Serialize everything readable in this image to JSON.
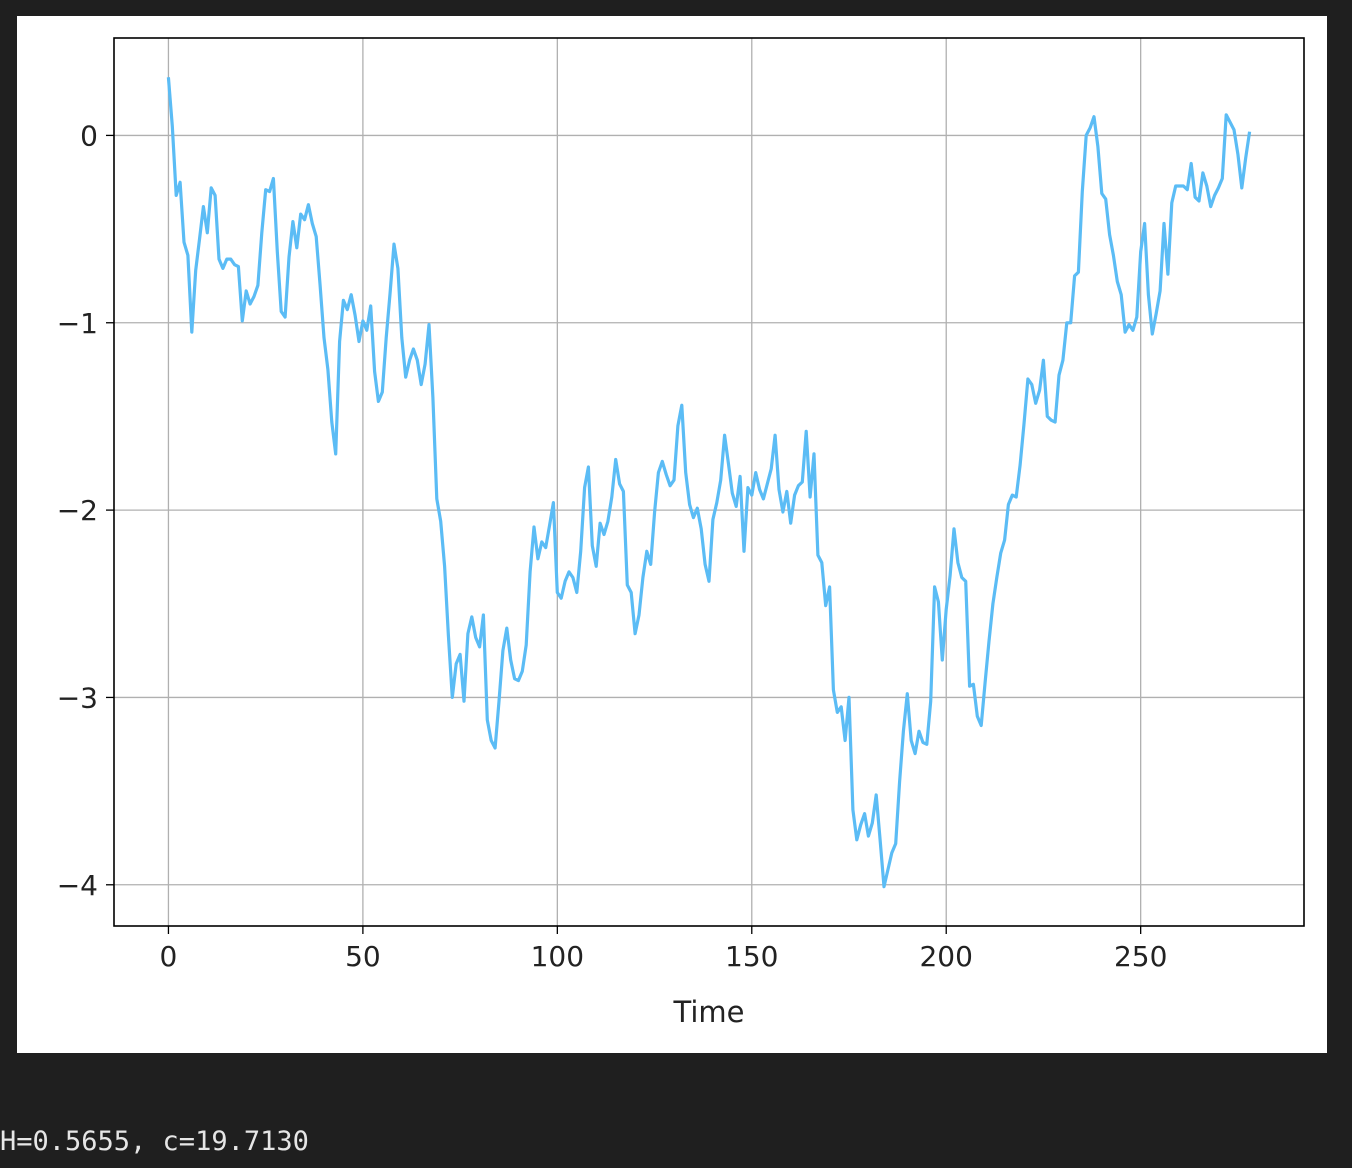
{
  "output": {
    "text": "H=0.5655, c=19.7130"
  },
  "chart_data": {
    "type": "line",
    "xlabel": "Time",
    "ylabel": "",
    "title": "",
    "xlim": [
      -14,
      292
    ],
    "ylim": [
      -4.22,
      0.52
    ],
    "xticks": [
      0,
      50,
      100,
      150,
      200,
      250
    ],
    "yticks": [
      0,
      -1,
      -2,
      -3,
      -4
    ],
    "ytick_labels": [
      "0",
      "−1",
      "−2",
      "−3",
      "−4"
    ],
    "grid": true,
    "colors": {
      "line": "#5bbcf5",
      "grid": "#b0b0b0",
      "axes": "#000000"
    },
    "series": [
      {
        "points": [
          [
            0,
            0.31
          ],
          [
            1,
            0.05
          ],
          [
            2,
            -0.32
          ],
          [
            3,
            -0.25
          ],
          [
            4,
            -0.57
          ],
          [
            5,
            -0.64
          ],
          [
            6,
            -1.05
          ],
          [
            7,
            -0.72
          ],
          [
            8,
            -0.55
          ],
          [
            9,
            -0.38
          ],
          [
            10,
            -0.52
          ],
          [
            11,
            -0.28
          ],
          [
            12,
            -0.32
          ],
          [
            13,
            -0.66
          ],
          [
            14,
            -0.71
          ],
          [
            15,
            -0.66
          ],
          [
            16,
            -0.66
          ],
          [
            17,
            -0.69
          ],
          [
            18,
            -0.7
          ],
          [
            19,
            -0.99
          ],
          [
            20,
            -0.83
          ],
          [
            21,
            -0.9
          ],
          [
            22,
            -0.86
          ],
          [
            23,
            -0.8
          ],
          [
            24,
            -0.52
          ],
          [
            25,
            -0.29
          ],
          [
            26,
            -0.3
          ],
          [
            27,
            -0.23
          ],
          [
            28,
            -0.62
          ],
          [
            29,
            -0.94
          ],
          [
            30,
            -0.97
          ],
          [
            31,
            -0.65
          ],
          [
            32,
            -0.46
          ],
          [
            33,
            -0.6
          ],
          [
            34,
            -0.42
          ],
          [
            35,
            -0.45
          ],
          [
            36,
            -0.37
          ],
          [
            37,
            -0.47
          ],
          [
            38,
            -0.54
          ],
          [
            39,
            -0.8
          ],
          [
            40,
            -1.08
          ],
          [
            41,
            -1.25
          ],
          [
            42,
            -1.53
          ],
          [
            43,
            -1.7
          ],
          [
            44,
            -1.1
          ],
          [
            45,
            -0.88
          ],
          [
            46,
            -0.93
          ],
          [
            47,
            -0.85
          ],
          [
            48,
            -0.96
          ],
          [
            49,
            -1.1
          ],
          [
            50,
            -0.99
          ],
          [
            51,
            -1.04
          ],
          [
            52,
            -0.91
          ],
          [
            53,
            -1.26
          ],
          [
            54,
            -1.42
          ],
          [
            55,
            -1.37
          ],
          [
            56,
            -1.08
          ],
          [
            57,
            -0.84
          ],
          [
            58,
            -0.58
          ],
          [
            59,
            -0.71
          ],
          [
            60,
            -1.08
          ],
          [
            61,
            -1.29
          ],
          [
            62,
            -1.2
          ],
          [
            63,
            -1.14
          ],
          [
            64,
            -1.2
          ],
          [
            65,
            -1.33
          ],
          [
            66,
            -1.22
          ],
          [
            67,
            -1.01
          ],
          [
            68,
            -1.4
          ],
          [
            69,
            -1.94
          ],
          [
            70,
            -2.06
          ],
          [
            71,
            -2.3
          ],
          [
            72,
            -2.67
          ],
          [
            73,
            -3.0
          ],
          [
            74,
            -2.82
          ],
          [
            75,
            -2.77
          ],
          [
            76,
            -3.02
          ],
          [
            77,
            -2.66
          ],
          [
            78,
            -2.57
          ],
          [
            79,
            -2.68
          ],
          [
            80,
            -2.73
          ],
          [
            81,
            -2.56
          ],
          [
            82,
            -3.12
          ],
          [
            83,
            -3.23
          ],
          [
            84,
            -3.27
          ],
          [
            85,
            -3.02
          ],
          [
            86,
            -2.75
          ],
          [
            87,
            -2.63
          ],
          [
            88,
            -2.8
          ],
          [
            89,
            -2.9
          ],
          [
            90,
            -2.91
          ],
          [
            91,
            -2.86
          ],
          [
            92,
            -2.72
          ],
          [
            93,
            -2.33
          ],
          [
            94,
            -2.09
          ],
          [
            95,
            -2.26
          ],
          [
            96,
            -2.17
          ],
          [
            97,
            -2.2
          ],
          [
            98,
            -2.08
          ],
          [
            99,
            -1.96
          ],
          [
            100,
            -2.44
          ],
          [
            101,
            -2.47
          ],
          [
            102,
            -2.38
          ],
          [
            103,
            -2.33
          ],
          [
            104,
            -2.36
          ],
          [
            105,
            -2.44
          ],
          [
            106,
            -2.22
          ],
          [
            107,
            -1.88
          ],
          [
            108,
            -1.77
          ],
          [
            109,
            -2.19
          ],
          [
            110,
            -2.3
          ],
          [
            111,
            -2.07
          ],
          [
            112,
            -2.13
          ],
          [
            113,
            -2.06
          ],
          [
            114,
            -1.93
          ],
          [
            115,
            -1.73
          ],
          [
            116,
            -1.86
          ],
          [
            117,
            -1.9
          ],
          [
            118,
            -2.4
          ],
          [
            119,
            -2.44
          ],
          [
            120,
            -2.66
          ],
          [
            121,
            -2.56
          ],
          [
            122,
            -2.36
          ],
          [
            123,
            -2.22
          ],
          [
            124,
            -2.29
          ],
          [
            125,
            -2.01
          ],
          [
            126,
            -1.8
          ],
          [
            127,
            -1.74
          ],
          [
            128,
            -1.81
          ],
          [
            129,
            -1.87
          ],
          [
            130,
            -1.84
          ],
          [
            131,
            -1.55
          ],
          [
            132,
            -1.44
          ],
          [
            133,
            -1.8
          ],
          [
            134,
            -1.97
          ],
          [
            135,
            -2.04
          ],
          [
            136,
            -1.99
          ],
          [
            137,
            -2.1
          ],
          [
            138,
            -2.29
          ],
          [
            139,
            -2.38
          ],
          [
            140,
            -2.05
          ],
          [
            141,
            -1.96
          ],
          [
            142,
            -1.84
          ],
          [
            143,
            -1.6
          ],
          [
            144,
            -1.75
          ],
          [
            145,
            -1.91
          ],
          [
            146,
            -1.98
          ],
          [
            147,
            -1.82
          ],
          [
            148,
            -2.22
          ],
          [
            149,
            -1.88
          ],
          [
            150,
            -1.92
          ],
          [
            151,
            -1.8
          ],
          [
            152,
            -1.89
          ],
          [
            153,
            -1.94
          ],
          [
            154,
            -1.86
          ],
          [
            155,
            -1.78
          ],
          [
            156,
            -1.6
          ],
          [
            157,
            -1.89
          ],
          [
            158,
            -2.01
          ],
          [
            159,
            -1.9
          ],
          [
            160,
            -2.07
          ],
          [
            161,
            -1.92
          ],
          [
            162,
            -1.87
          ],
          [
            163,
            -1.85
          ],
          [
            164,
            -1.58
          ],
          [
            165,
            -1.93
          ],
          [
            166,
            -1.7
          ],
          [
            167,
            -2.24
          ],
          [
            168,
            -2.28
          ],
          [
            169,
            -2.51
          ],
          [
            170,
            -2.41
          ],
          [
            171,
            -2.96
          ],
          [
            172,
            -3.08
          ],
          [
            173,
            -3.05
          ],
          [
            174,
            -3.23
          ],
          [
            175,
            -3.0
          ],
          [
            176,
            -3.6
          ],
          [
            177,
            -3.76
          ],
          [
            178,
            -3.68
          ],
          [
            179,
            -3.62
          ],
          [
            180,
            -3.74
          ],
          [
            181,
            -3.67
          ],
          [
            182,
            -3.52
          ],
          [
            183,
            -3.76
          ],
          [
            184,
            -4.01
          ],
          [
            185,
            -3.92
          ],
          [
            186,
            -3.83
          ],
          [
            187,
            -3.78
          ],
          [
            188,
            -3.45
          ],
          [
            189,
            -3.18
          ],
          [
            190,
            -2.98
          ],
          [
            191,
            -3.23
          ],
          [
            192,
            -3.3
          ],
          [
            193,
            -3.18
          ],
          [
            194,
            -3.24
          ],
          [
            195,
            -3.25
          ],
          [
            196,
            -3.02
          ],
          [
            197,
            -2.41
          ],
          [
            198,
            -2.49
          ],
          [
            199,
            -2.8
          ],
          [
            200,
            -2.53
          ],
          [
            201,
            -2.35
          ],
          [
            202,
            -2.1
          ],
          [
            203,
            -2.28
          ],
          [
            204,
            -2.36
          ],
          [
            205,
            -2.38
          ],
          [
            206,
            -2.94
          ],
          [
            207,
            -2.93
          ],
          [
            208,
            -3.1
          ],
          [
            209,
            -3.15
          ],
          [
            210,
            -2.92
          ],
          [
            211,
            -2.7
          ],
          [
            212,
            -2.5
          ],
          [
            213,
            -2.36
          ],
          [
            214,
            -2.23
          ],
          [
            215,
            -2.16
          ],
          [
            216,
            -1.97
          ],
          [
            217,
            -1.92
          ],
          [
            218,
            -1.93
          ],
          [
            219,
            -1.76
          ],
          [
            220,
            -1.54
          ],
          [
            221,
            -1.3
          ],
          [
            222,
            -1.33
          ],
          [
            223,
            -1.43
          ],
          [
            224,
            -1.36
          ],
          [
            225,
            -1.2
          ],
          [
            226,
            -1.5
          ],
          [
            227,
            -1.52
          ],
          [
            228,
            -1.53
          ],
          [
            229,
            -1.28
          ],
          [
            230,
            -1.2
          ],
          [
            231,
            -1.0
          ],
          [
            232,
            -1.0
          ],
          [
            233,
            -0.75
          ],
          [
            234,
            -0.73
          ],
          [
            235,
            -0.3
          ],
          [
            236,
            0.0
          ],
          [
            237,
            0.04
          ],
          [
            238,
            0.1
          ],
          [
            239,
            -0.06
          ],
          [
            240,
            -0.31
          ],
          [
            241,
            -0.34
          ],
          [
            242,
            -0.53
          ],
          [
            243,
            -0.64
          ],
          [
            244,
            -0.78
          ],
          [
            245,
            -0.85
          ],
          [
            246,
            -1.05
          ],
          [
            247,
            -1.01
          ],
          [
            248,
            -1.04
          ],
          [
            249,
            -0.97
          ],
          [
            250,
            -0.62
          ],
          [
            251,
            -0.47
          ],
          [
            252,
            -0.85
          ],
          [
            253,
            -1.06
          ],
          [
            254,
            -0.95
          ],
          [
            255,
            -0.83
          ],
          [
            256,
            -0.47
          ],
          [
            257,
            -0.74
          ],
          [
            258,
            -0.36
          ],
          [
            259,
            -0.27
          ],
          [
            260,
            -0.27
          ],
          [
            261,
            -0.27
          ],
          [
            262,
            -0.29
          ],
          [
            263,
            -0.15
          ],
          [
            264,
            -0.33
          ],
          [
            265,
            -0.35
          ],
          [
            266,
            -0.2
          ],
          [
            267,
            -0.27
          ],
          [
            268,
            -0.38
          ],
          [
            269,
            -0.32
          ],
          [
            270,
            -0.28
          ],
          [
            271,
            -0.23
          ],
          [
            272,
            0.11
          ],
          [
            273,
            0.07
          ],
          [
            274,
            0.03
          ],
          [
            275,
            -0.1
          ],
          [
            276,
            -0.28
          ],
          [
            277,
            -0.12
          ],
          [
            278,
            0.02
          ]
        ]
      }
    ]
  }
}
